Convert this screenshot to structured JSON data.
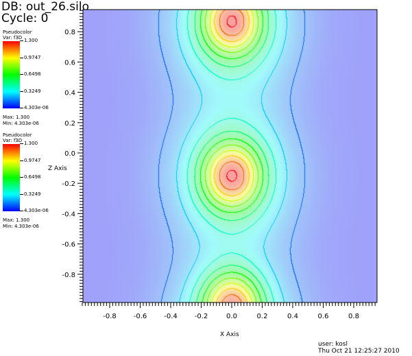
{
  "header": {
    "db": "DB: out_26.silo",
    "cycle": "Cycle: 0"
  },
  "legends": [
    {
      "title": "Pseudocolor",
      "var": "Var: f3D",
      "ticks": [
        "1.300",
        "0.9747",
        "0.6498",
        "0.3249",
        "4.303e-06"
      ],
      "max": "Max: 1.300",
      "min": "Min: 4.303e-06"
    },
    {
      "title": "Pseudocolor",
      "var": "Var: f3D",
      "ticks": [
        "1.300",
        "0.9747",
        "0.6498",
        "0.3249",
        "4.303e-06"
      ],
      "max": "Max: 1.300",
      "min": "Min: 4.303e-06"
    }
  ],
  "footer": {
    "user": "user: kosl",
    "date": "Thu Oct 21 12:25:27 2010"
  },
  "chart_data": {
    "type": "heatmap",
    "subtype": "pseudocolor with contour lines",
    "variable": "f3D",
    "range": [
      4.303e-06,
      1.3
    ],
    "colormap": [
      "#0000ff",
      "#00ffff",
      "#00ff00",
      "#ffff00",
      "#ff0000"
    ],
    "xlabel": "X Axis",
    "ylabel": "Z Axis",
    "xlim": [
      -0.97,
      0.95
    ],
    "ylim": [
      -0.99,
      0.95
    ],
    "xticks": [
      "-0.8",
      "-0.6",
      "-0.4",
      "-0.2",
      "0.0",
      "0.2",
      "0.4",
      "0.6",
      "0.8"
    ],
    "yticks": [
      "0.8",
      "0.6",
      "0.4",
      "0.2",
      "0.0",
      "-0.2",
      "-0.4",
      "-0.6",
      "-0.8"
    ],
    "peaks": [
      {
        "x": 0.0,
        "z": 0.87,
        "value": 1.3
      },
      {
        "x": 0.0,
        "z": -0.15,
        "value": 1.3
      },
      {
        "x": 0.0,
        "z": -1.0,
        "value": 1.3
      }
    ]
  }
}
